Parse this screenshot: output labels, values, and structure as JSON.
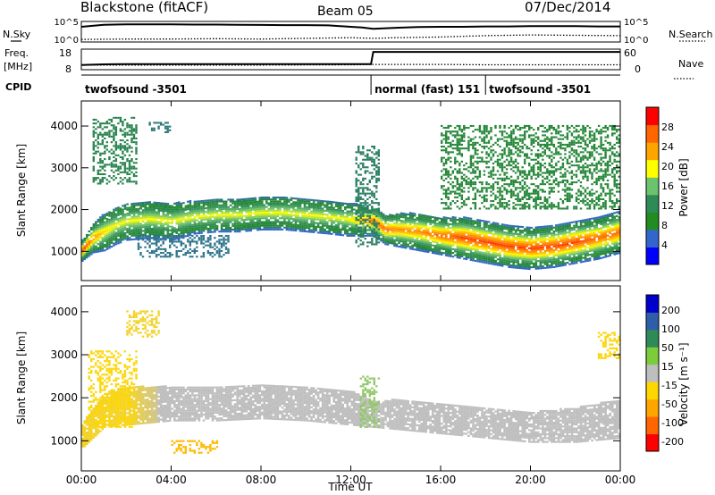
{
  "header": {
    "station": "Blackstone (fitACF)",
    "beam": "Beam 05",
    "date": "07/Dec/2014"
  },
  "side_labels": {
    "nsky": "N.Sky",
    "freq_line1": "Freq.",
    "freq_line2": "[MHz]",
    "cpid": "CPID",
    "nsearch": "N.Search",
    "nave": "Nave"
  },
  "colors": {
    "scatter_bg": "#ffffff",
    "velocity_ground_scatter": "#bebebe"
  },
  "chart_data": [
    {
      "type": "line",
      "title": "N.Sky / N.Search",
      "ytick_labels_left": [
        "10^5",
        "10^0"
      ],
      "ytick_labels_right": [
        "10^5",
        "10^0"
      ],
      "series": [
        {
          "name": "N.Sky",
          "style": "solid",
          "x": [
            0,
            1,
            2,
            3,
            4,
            5,
            6,
            7,
            8,
            9,
            10,
            11,
            12,
            12.5,
            13,
            14,
            15,
            16,
            17,
            18,
            19,
            20,
            21,
            22,
            23,
            24
          ],
          "values": [
            4.2,
            4.8,
            4.9,
            4.9,
            4.9,
            4.85,
            4.85,
            4.8,
            4.75,
            4.7,
            4.7,
            4.6,
            4.2,
            4.0,
            3.6,
            3.9,
            4.1,
            4.2,
            4.2,
            4.3,
            4.3,
            4.4,
            4.4,
            4.4,
            4.3,
            4.3
          ]
        },
        {
          "name": "N.Search",
          "style": "dotted",
          "x": [
            0,
            2,
            4,
            6,
            8,
            10,
            12,
            13,
            14,
            16,
            18,
            20,
            22,
            24
          ],
          "values": [
            0.5,
            0.6,
            0.6,
            0.7,
            0.6,
            0.8,
            1.0,
            0.8,
            1.0,
            1.2,
            1.6,
            1.8,
            1.7,
            1.6
          ]
        }
      ]
    },
    {
      "type": "line",
      "title": "Freq. / Nave",
      "ytick_labels_left": [
        "18",
        "8"
      ],
      "ytick_labels_right": [
        "60",
        "0"
      ],
      "series": [
        {
          "name": "Freq.",
          "style": "solid",
          "x": [
            0,
            1,
            2,
            4,
            6,
            8,
            10,
            12,
            12.9,
            13.0,
            14,
            16,
            18,
            20,
            22,
            24
          ],
          "values": [
            10.0,
            10.4,
            10.5,
            10.5,
            10.5,
            10.5,
            10.5,
            10.5,
            10.5,
            17.0,
            17.0,
            17.0,
            17.0,
            17.0,
            17.0,
            17.0
          ]
        },
        {
          "name": "Nave",
          "style": "dotted",
          "x": [
            0,
            4,
            8,
            12,
            13,
            16,
            18,
            20,
            24
          ],
          "values": [
            12,
            12,
            12,
            13,
            14,
            14,
            13,
            13,
            13
          ]
        }
      ]
    },
    {
      "type": "table",
      "title": "CPID",
      "segments": [
        {
          "label": "twofsound -3501",
          "start": 0,
          "end": 12.9
        },
        {
          "label": "normal (fast) 151",
          "start": 12.9,
          "end": 18.0
        },
        {
          "label": "twofsound -3501",
          "start": 18.0,
          "end": 24
        }
      ]
    },
    {
      "type": "heatmap",
      "title": "Power",
      "xlabel": "Time UT",
      "ylabel": "Slant Range [km]",
      "xlim": [
        0,
        24
      ],
      "ylim": [
        300,
        4600
      ],
      "xtick_labels": [
        "00:00",
        "04:00",
        "08:00",
        "12:00",
        "16:00",
        "20:00",
        "00:00"
      ],
      "ytick_labels": [
        "1000",
        "2000",
        "3000",
        "4000"
      ],
      "colorbar": {
        "label": "Power [dB]",
        "ticks": [
          "4",
          "8",
          "12",
          "16",
          "20",
          "24",
          "28"
        ],
        "range": [
          0,
          32
        ]
      },
      "colorscale": [
        "#0000ff",
        "#3366cc",
        "#228b22",
        "#2e8b57",
        "#6dc36d",
        "#ffff00",
        "#ffa500",
        "#ff6600",
        "#ff0000"
      ],
      "main_band": {
        "x": [
          0,
          0.5,
          1,
          1.5,
          2,
          3,
          4,
          5,
          6,
          7,
          8,
          9,
          10,
          11,
          11.8,
          13,
          13.5,
          14,
          15,
          16,
          17,
          18,
          19,
          20,
          21,
          22,
          23,
          24
        ],
        "center_km": [
          1000,
          1300,
          1450,
          1600,
          1700,
          1750,
          1700,
          1800,
          1850,
          1850,
          1900,
          1900,
          1850,
          1800,
          1750,
          1700,
          1500,
          1500,
          1450,
          1350,
          1300,
          1200,
          1100,
          1050,
          1100,
          1200,
          1300,
          1450
        ],
        "halfwidth_km": [
          250,
          350,
          450,
          450,
          450,
          450,
          450,
          400,
          400,
          400,
          400,
          400,
          400,
          400,
          400,
          350,
          350,
          400,
          450,
          450,
          500,
          500,
          500,
          500,
          500,
          500,
          500,
          500
        ],
        "peak_db": [
          30,
          26,
          22,
          20,
          20,
          20,
          20,
          20,
          20,
          20,
          20,
          20,
          20,
          20,
          20,
          28,
          28,
          26,
          26,
          28,
          30,
          30,
          30,
          30,
          30,
          30,
          28,
          28
        ]
      },
      "patches": [
        {
          "x_start": 2.5,
          "x_end": 6.5,
          "center_km": 1100,
          "halfwidth_km": 250,
          "power_db": 7
        },
        {
          "x_start": 0.5,
          "x_end": 2.5,
          "center_km": 3400,
          "halfwidth_km": 800,
          "power_db": 10
        },
        {
          "x_start": 3.0,
          "x_end": 4.0,
          "center_km": 3950,
          "halfwidth_km": 120,
          "power_db": 8
        },
        {
          "x_start": 16.0,
          "x_end": 24.0,
          "center_km": 3000,
          "halfwidth_km": 1000,
          "power_db": 11
        },
        {
          "x_start": 12.2,
          "x_end": 13.2,
          "center_km": 2300,
          "halfwidth_km": 1200,
          "power_db": 9
        }
      ]
    },
    {
      "type": "heatmap",
      "title": "Velocity",
      "xlabel": "Time UT",
      "ylabel": "Slant Range [km]",
      "xlim": [
        0,
        24
      ],
      "ylim": [
        300,
        4600
      ],
      "xtick_labels": [
        "00:00",
        "04:00",
        "08:00",
        "12:00",
        "16:00",
        "20:00",
        "00:00"
      ],
      "ytick_labels": [
        "1000",
        "2000",
        "3000",
        "4000"
      ],
      "colorbar": {
        "label": "Velocity [m s^-1]",
        "ticks": [
          "200",
          "100",
          "50",
          "15",
          "-15",
          "-50",
          "-100",
          "-200"
        ],
        "range": [
          -250,
          250
        ]
      },
      "colorscale": [
        "#ff0000",
        "#ff6600",
        "#ffa500",
        "#ffd700",
        "#bebebe",
        "#7ccd3c",
        "#2e8b57",
        "#2e5eaa",
        "#0000cd"
      ],
      "main_band": {
        "x": [
          0,
          1,
          2,
          4,
          6,
          8,
          10,
          12,
          13,
          14,
          16,
          18,
          20,
          22,
          24
        ],
        "center_km": [
          1100,
          1700,
          1800,
          1850,
          1850,
          1900,
          1850,
          1750,
          1600,
          1600,
          1500,
          1400,
          1300,
          1350,
          1500
        ],
        "halfwidth_km": [
          300,
          400,
          450,
          400,
          400,
          400,
          400,
          400,
          300,
          350,
          350,
          350,
          350,
          400,
          450
        ],
        "velocity": [
          -50,
          -50,
          -50,
          0,
          0,
          0,
          0,
          0,
          0,
          0,
          0,
          0,
          0,
          0,
          0
        ]
      },
      "patches": [
        {
          "x_start": 4.0,
          "x_end": 6.0,
          "center_km": 850,
          "halfwidth_km": 150,
          "velocity": -100
        },
        {
          "x_start": 0.3,
          "x_end": 2.5,
          "center_km": 2200,
          "halfwidth_km": 900,
          "velocity": -60
        },
        {
          "x_start": 12.4,
          "x_end": 13.2,
          "center_km": 1900,
          "halfwidth_km": 600,
          "velocity": 40
        },
        {
          "x_start": 23.0,
          "x_end": 24.0,
          "center_km": 3200,
          "halfwidth_km": 300,
          "velocity": -60
        },
        {
          "x_start": 2.0,
          "x_end": 3.5,
          "center_km": 3700,
          "halfwidth_km": 300,
          "velocity": -50
        }
      ]
    }
  ]
}
